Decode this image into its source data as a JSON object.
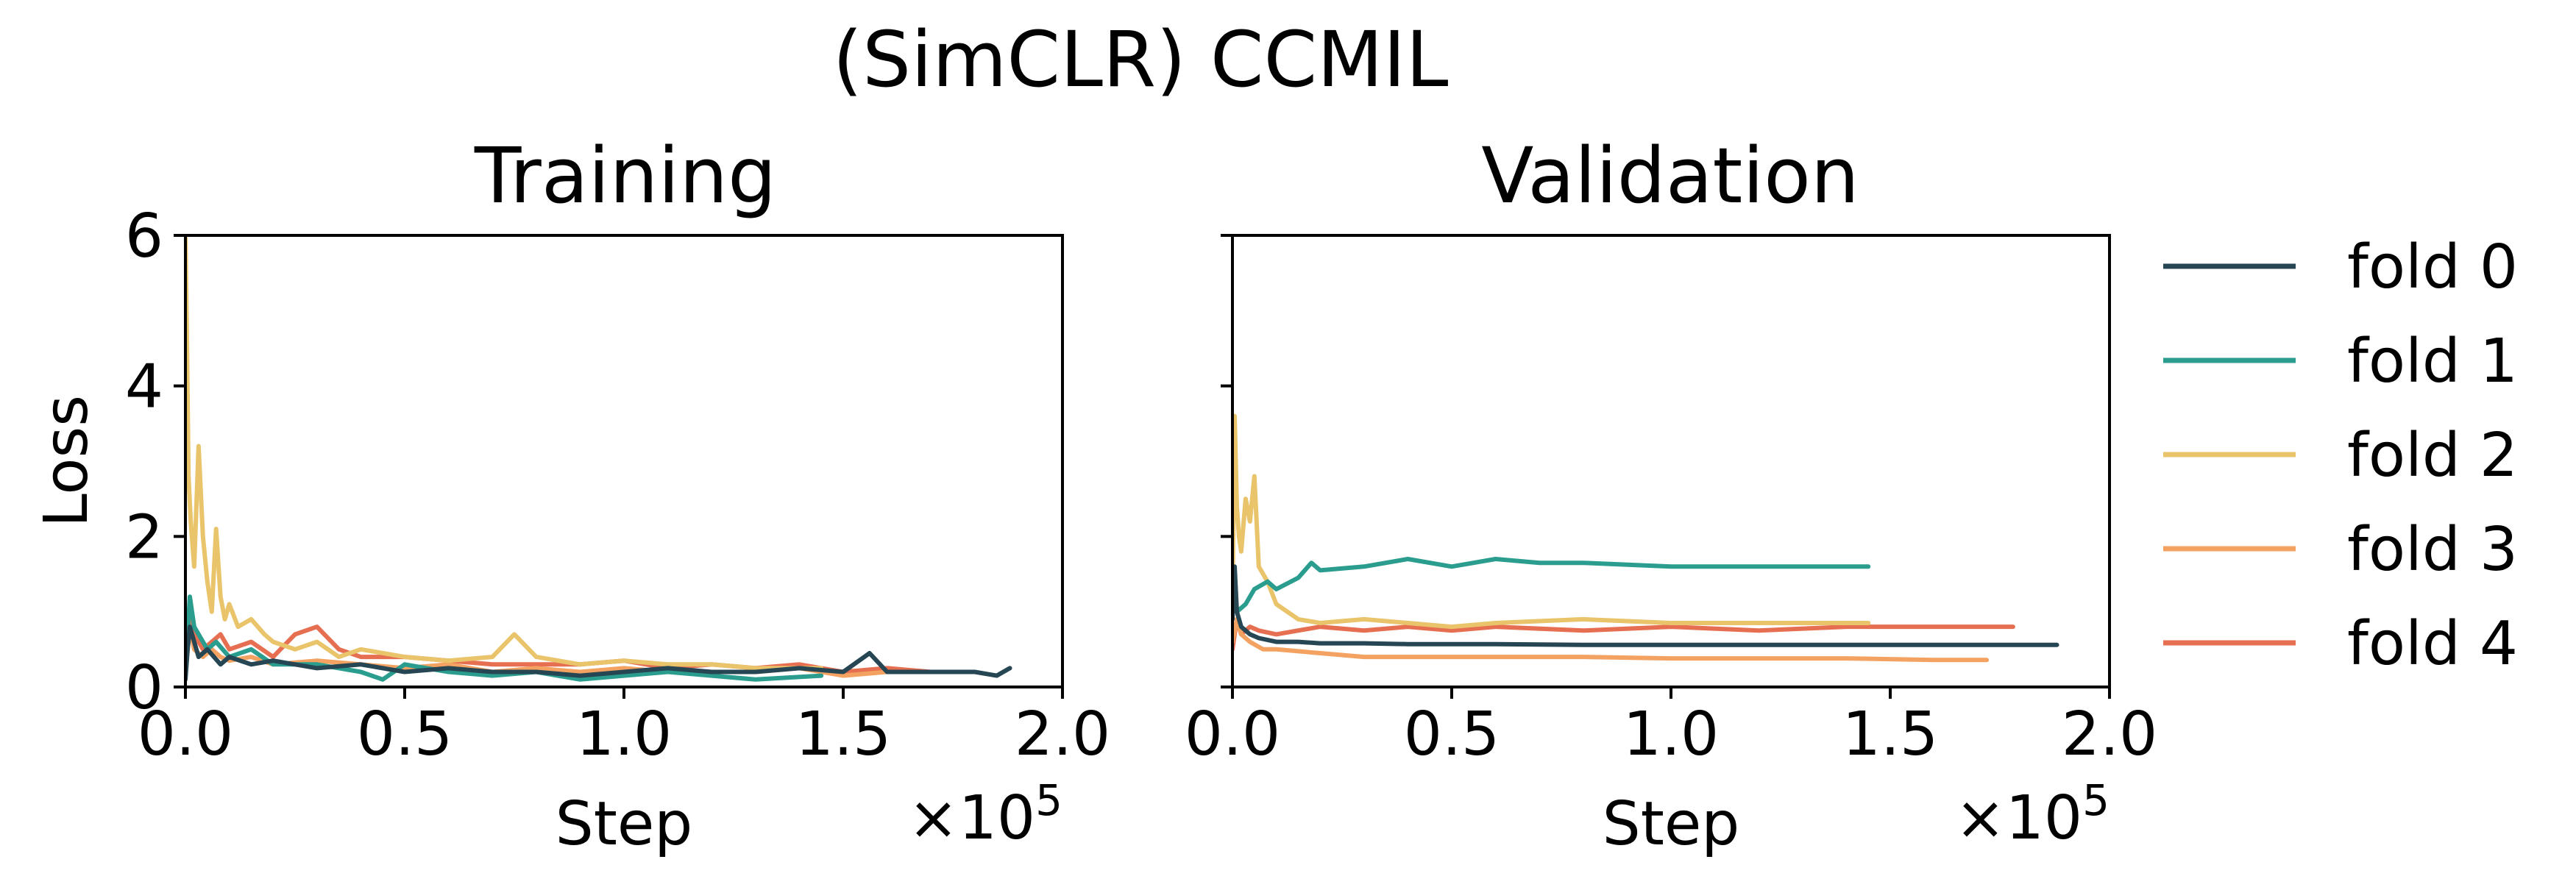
{
  "figure": {
    "title": "(SimCLR) CCMIL"
  },
  "legend": {
    "placement": "outside-right",
    "entries": [
      {
        "label": "fold 0",
        "color": "#264653"
      },
      {
        "label": "fold 1",
        "color": "#2a9d8f"
      },
      {
        "label": "fold 2",
        "color": "#e9c46a"
      },
      {
        "label": "fold 3",
        "color": "#f4a261"
      },
      {
        "label": "fold 4",
        "color": "#e76f51"
      }
    ]
  },
  "chart_data": [
    {
      "type": "line",
      "title": "Training",
      "xlabel": "Step",
      "ylabel": "Loss",
      "x_multiplier": "×10",
      "x_multiplier_exp": "5",
      "xlim": [
        0,
        2.0
      ],
      "ylim": [
        0,
        6
      ],
      "xticks": [
        "0.0",
        "0.5",
        "1.0",
        "1.5",
        "2.0"
      ],
      "xtick_values": [
        0,
        0.5,
        1.0,
        1.5,
        2.0
      ],
      "yticks": [
        "0",
        "2",
        "4",
        "6"
      ],
      "ytick_values": [
        0,
        2,
        4,
        6
      ],
      "grid": false,
      "series": [
        {
          "name": "fold 4",
          "color": "#e76f51",
          "x": [
            0.0,
            0.01,
            0.02,
            0.04,
            0.06,
            0.08,
            0.1,
            0.15,
            0.2,
            0.25,
            0.3,
            0.35,
            0.4,
            0.5,
            0.6,
            0.7,
            0.8,
            0.9,
            1.0,
            1.1,
            1.2,
            1.3,
            1.4,
            1.5,
            1.6,
            1.7,
            1.78
          ],
          "y": [
            0.3,
            1.0,
            0.7,
            0.5,
            0.6,
            0.7,
            0.5,
            0.6,
            0.4,
            0.7,
            0.8,
            0.5,
            0.4,
            0.4,
            0.35,
            0.3,
            0.3,
            0.3,
            0.35,
            0.25,
            0.3,
            0.25,
            0.3,
            0.2,
            0.25,
            0.2,
            0.2
          ]
        },
        {
          "name": "fold 3",
          "color": "#f4a261",
          "x": [
            0.0,
            0.01,
            0.02,
            0.04,
            0.06,
            0.08,
            0.1,
            0.15,
            0.2,
            0.3,
            0.4,
            0.5,
            0.6,
            0.7,
            0.8,
            0.9,
            1.0,
            1.1,
            1.2,
            1.3,
            1.4,
            1.5,
            1.6,
            1.72
          ],
          "y": [
            0.2,
            0.8,
            0.5,
            0.4,
            0.5,
            0.4,
            0.35,
            0.4,
            0.3,
            0.35,
            0.3,
            0.25,
            0.3,
            0.2,
            0.25,
            0.2,
            0.25,
            0.2,
            0.2,
            0.2,
            0.25,
            0.15,
            0.2,
            0.2
          ]
        },
        {
          "name": "fold 2",
          "color": "#e9c46a",
          "x": [
            0.0,
            0.003,
            0.007,
            0.012,
            0.02,
            0.03,
            0.04,
            0.05,
            0.06,
            0.07,
            0.08,
            0.09,
            0.1,
            0.12,
            0.15,
            0.18,
            0.2,
            0.25,
            0.3,
            0.35,
            0.4,
            0.5,
            0.6,
            0.7,
            0.75,
            0.8,
            0.9,
            1.0,
            1.1,
            1.2,
            1.3,
            1.45
          ],
          "y": [
            6.0,
            4.8,
            2.8,
            2.2,
            1.6,
            3.2,
            2.0,
            1.4,
            1.0,
            2.1,
            1.2,
            0.9,
            1.1,
            0.8,
            0.9,
            0.7,
            0.6,
            0.5,
            0.6,
            0.4,
            0.5,
            0.4,
            0.35,
            0.4,
            0.7,
            0.4,
            0.3,
            0.35,
            0.3,
            0.3,
            0.25,
            0.25
          ]
        },
        {
          "name": "fold 1",
          "color": "#2a9d8f",
          "x": [
            0.0,
            0.01,
            0.02,
            0.03,
            0.05,
            0.07,
            0.1,
            0.15,
            0.2,
            0.3,
            0.4,
            0.45,
            0.5,
            0.6,
            0.7,
            0.8,
            0.9,
            1.0,
            1.1,
            1.2,
            1.3,
            1.45
          ],
          "y": [
            0.2,
            1.2,
            0.8,
            0.7,
            0.5,
            0.6,
            0.4,
            0.5,
            0.3,
            0.3,
            0.2,
            0.1,
            0.3,
            0.2,
            0.15,
            0.2,
            0.1,
            0.15,
            0.2,
            0.15,
            0.1,
            0.15
          ]
        },
        {
          "name": "fold 0",
          "color": "#264653",
          "x": [
            0.0,
            0.005,
            0.01,
            0.02,
            0.03,
            0.05,
            0.08,
            0.1,
            0.15,
            0.2,
            0.3,
            0.4,
            0.5,
            0.6,
            0.7,
            0.8,
            0.9,
            1.0,
            1.1,
            1.2,
            1.3,
            1.4,
            1.5,
            1.56,
            1.6,
            1.7,
            1.8,
            1.85,
            1.88
          ],
          "y": [
            0.1,
            0.5,
            0.8,
            0.6,
            0.4,
            0.5,
            0.3,
            0.4,
            0.3,
            0.35,
            0.25,
            0.3,
            0.2,
            0.25,
            0.2,
            0.2,
            0.15,
            0.2,
            0.25,
            0.2,
            0.2,
            0.25,
            0.2,
            0.45,
            0.2,
            0.2,
            0.2,
            0.15,
            0.25
          ]
        }
      ]
    },
    {
      "type": "line",
      "title": "Validation",
      "xlabel": "Step",
      "x_multiplier": "×10",
      "x_multiplier_exp": "5",
      "xlim": [
        0,
        2.0
      ],
      "ylim": [
        0,
        6
      ],
      "xticks": [
        "0.0",
        "0.5",
        "1.0",
        "1.5",
        "2.0"
      ],
      "xtick_values": [
        0,
        0.5,
        1.0,
        1.5,
        2.0
      ],
      "ytick_values": [
        0,
        2,
        4,
        6
      ],
      "grid": false,
      "series": [
        {
          "name": "fold 4",
          "color": "#e76f51",
          "x": [
            0.0,
            0.01,
            0.02,
            0.04,
            0.06,
            0.1,
            0.2,
            0.3,
            0.4,
            0.5,
            0.6,
            0.8,
            1.0,
            1.2,
            1.4,
            1.6,
            1.78
          ],
          "y": [
            0.5,
            0.9,
            0.7,
            0.8,
            0.75,
            0.7,
            0.8,
            0.75,
            0.8,
            0.75,
            0.8,
            0.75,
            0.8,
            0.75,
            0.8,
            0.8,
            0.8
          ]
        },
        {
          "name": "fold 3",
          "color": "#f4a261",
          "x": [
            0.0,
            0.01,
            0.02,
            0.04,
            0.07,
            0.1,
            0.2,
            0.3,
            0.4,
            0.5,
            0.6,
            0.8,
            1.0,
            1.2,
            1.4,
            1.6,
            1.72
          ],
          "y": [
            0.6,
            0.9,
            0.7,
            0.6,
            0.5,
            0.5,
            0.45,
            0.4,
            0.4,
            0.4,
            0.4,
            0.4,
            0.38,
            0.38,
            0.38,
            0.36,
            0.36
          ]
        },
        {
          "name": "fold 2",
          "color": "#e9c46a",
          "x": [
            0.0,
            0.005,
            0.01,
            0.015,
            0.02,
            0.03,
            0.04,
            0.05,
            0.06,
            0.08,
            0.1,
            0.15,
            0.2,
            0.3,
            0.4,
            0.5,
            0.6,
            0.8,
            1.0,
            1.2,
            1.45
          ],
          "y": [
            1.2,
            3.6,
            2.4,
            2.0,
            1.8,
            2.5,
            2.2,
            2.8,
            1.6,
            1.4,
            1.1,
            0.9,
            0.85,
            0.9,
            0.85,
            0.8,
            0.85,
            0.9,
            0.85,
            0.85,
            0.85
          ]
        },
        {
          "name": "fold 1",
          "color": "#2a9d8f",
          "x": [
            0.0,
            0.01,
            0.03,
            0.05,
            0.08,
            0.1,
            0.15,
            0.18,
            0.2,
            0.3,
            0.4,
            0.5,
            0.6,
            0.7,
            0.8,
            1.0,
            1.2,
            1.45
          ],
          "y": [
            1.2,
            1.0,
            1.1,
            1.3,
            1.4,
            1.3,
            1.45,
            1.65,
            1.55,
            1.6,
            1.7,
            1.6,
            1.7,
            1.65,
            1.65,
            1.6,
            1.6,
            1.6
          ]
        },
        {
          "name": "fold 0",
          "color": "#264653",
          "x": [
            0.0,
            0.005,
            0.01,
            0.02,
            0.04,
            0.06,
            0.1,
            0.15,
            0.2,
            0.3,
            0.4,
            0.6,
            0.8,
            1.0,
            1.2,
            1.4,
            1.6,
            1.88
          ],
          "y": [
            0.9,
            1.6,
            1.0,
            0.8,
            0.7,
            0.65,
            0.6,
            0.6,
            0.58,
            0.58,
            0.57,
            0.57,
            0.56,
            0.56,
            0.56,
            0.56,
            0.56,
            0.56
          ]
        }
      ]
    }
  ]
}
